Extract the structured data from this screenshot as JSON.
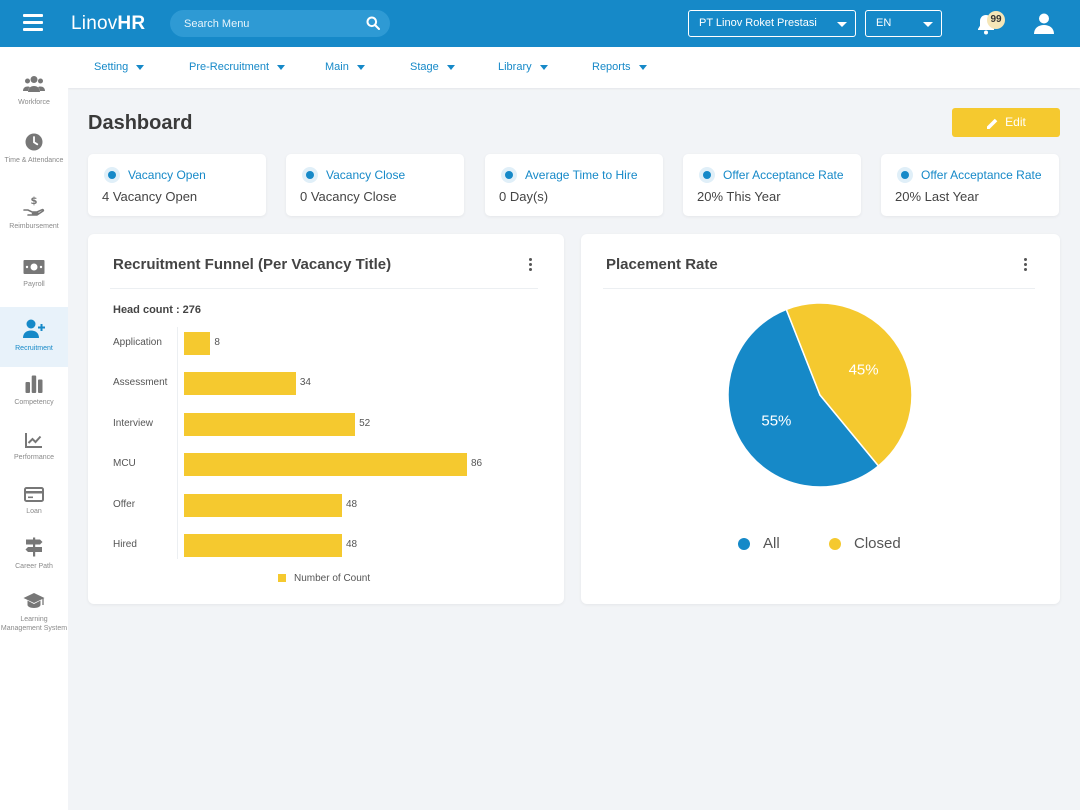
{
  "app": {
    "logo_light": "Linov",
    "logo_bold": "HR"
  },
  "search": {
    "placeholder": "Search Menu"
  },
  "header": {
    "company": "PT Linov Roket Prestasi",
    "language": "EN",
    "notification_count": "99"
  },
  "subnav": [
    "Setting",
    "Pre-Recruitment",
    "Main",
    "Stage",
    "Library",
    "Reports"
  ],
  "sidebar": {
    "items": [
      {
        "label": "Workforce",
        "icon": "users-icon"
      },
      {
        "label": "Time & Attendance",
        "icon": "clock-icon"
      },
      {
        "label": "Reimbursement",
        "icon": "hand-dollar-icon"
      },
      {
        "label": "Payroll",
        "icon": "money-icon"
      },
      {
        "label": "Recruitment",
        "icon": "user-plus-icon",
        "active": true
      },
      {
        "label": "Competency",
        "icon": "bar-chart-icon"
      },
      {
        "label": "Performance",
        "icon": "line-chart-icon"
      },
      {
        "label": "Loan",
        "icon": "credit-card-icon"
      },
      {
        "label": "Career Path",
        "icon": "signpost-icon"
      },
      {
        "label": "Learning Management System",
        "icon": "graduation-cap-icon"
      }
    ]
  },
  "page": {
    "title": "Dashboard",
    "edit_label": "Edit"
  },
  "stats": [
    {
      "title": "Vacancy Open",
      "value": "4 Vacancy Open"
    },
    {
      "title": "Vacancy Close",
      "value": "0 Vacancy Close"
    },
    {
      "title": "Average Time to Hire",
      "value": "0 Day(s)"
    },
    {
      "title": "Offer Acceptance Rate",
      "value": "20% This Year"
    },
    {
      "title": "Offer Acceptance Rate",
      "value": "20% Last Year"
    }
  ],
  "funnel": {
    "title": "Recruitment Funnel (Per Vacancy Title)",
    "headcount": "Head count : 276"
  },
  "placement": {
    "title": "Placement Rate"
  },
  "colors": {
    "primary": "#1689c8",
    "accent": "#f5c92f"
  },
  "chart_data": [
    {
      "type": "bar",
      "orientation": "horizontal",
      "title": "Recruitment Funnel (Per Vacancy Title)",
      "categories": [
        "Application",
        "Assessment",
        "Interview",
        "MCU",
        "Offer",
        "Hired"
      ],
      "series": [
        {
          "name": "Number of Count",
          "values": [
            8,
            34,
            52,
            86,
            48,
            48
          ]
        }
      ],
      "legend": "bottom"
    },
    {
      "type": "pie",
      "title": "Placement Rate",
      "labels": [
        "All",
        "Closed"
      ],
      "values": [
        55,
        45
      ],
      "value_labels": [
        "55%",
        "45%"
      ],
      "colors": [
        "#1689c8",
        "#f5c92f"
      ],
      "legend": "bottom"
    }
  ]
}
